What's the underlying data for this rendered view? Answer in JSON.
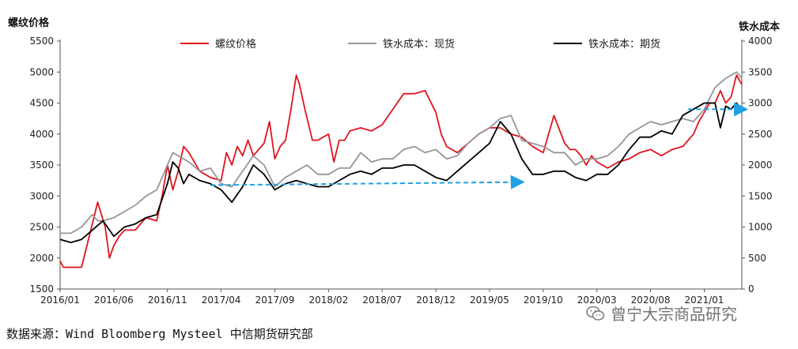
{
  "source": "数据来源：Wind Bloomberg Mysteel 中信期货研究部",
  "watermark": "曾宁大宗商品研究",
  "colors": {
    "rebar": "#e0141e",
    "spot": "#969696",
    "futures": "#000000",
    "arrow": "#1ea0e6"
  },
  "chart_data": {
    "type": "line",
    "left_axis_title": "螺纹价格",
    "right_axis_title": "铁水成本",
    "ylim_left": [
      1500,
      5500
    ],
    "ylim_right": [
      0,
      4000
    ],
    "yticks_left": [
      1500,
      2000,
      2500,
      3000,
      3500,
      4000,
      4500,
      5000,
      5500
    ],
    "yticks_right": [
      0,
      500,
      1000,
      1500,
      2000,
      2500,
      3000,
      3500,
      4000
    ],
    "x_ticks": [
      "2016/01",
      "2016/06",
      "2016/11",
      "2017/04",
      "2017/09",
      "2018/02",
      "2018/07",
      "2018/12",
      "2019/05",
      "2019/10",
      "2020/03",
      "2020/08",
      "2021/01"
    ],
    "x_range_months": [
      0,
      63.5
    ],
    "legend": [
      "螺纹价格",
      "铁水成本：现货",
      "铁水成本：期货"
    ],
    "series": [
      {
        "name": "螺纹价格",
        "axis": "left",
        "x": [
          0,
          0.3,
          1,
          2,
          2.5,
          3,
          3.5,
          4.2,
          4.6,
          5,
          5.5,
          6,
          7,
          8,
          9,
          9.5,
          10,
          10.5,
          11,
          11.5,
          12,
          13,
          14,
          15,
          15.5,
          16,
          16.5,
          17,
          17.5,
          18,
          19,
          19.5,
          20,
          20.5,
          21,
          21.5,
          22,
          22.3,
          22.8,
          23.5,
          24,
          25,
          25.5,
          26,
          26.5,
          27,
          28,
          29,
          30,
          31,
          32,
          33,
          34,
          35,
          35.5,
          36,
          37,
          38,
          39,
          40,
          41,
          42,
          43,
          44,
          45,
          46,
          47,
          47.5,
          48,
          48.5,
          49,
          49.5,
          50,
          51,
          52,
          53,
          54,
          55,
          56,
          57,
          58,
          59,
          59.5,
          60,
          60.5,
          61,
          61.5,
          62,
          62.5,
          63,
          63.5
        ],
        "values": [
          1950,
          1850,
          1850,
          1850,
          2200,
          2550,
          2900,
          2500,
          2000,
          2200,
          2350,
          2450,
          2450,
          2650,
          2600,
          3000,
          3500,
          3100,
          3400,
          3800,
          3700,
          3400,
          3300,
          3250,
          3700,
          3500,
          3800,
          3650,
          3900,
          3650,
          3850,
          4200,
          3600,
          3800,
          3900,
          4400,
          4950,
          4800,
          4400,
          3900,
          3900,
          4000,
          3550,
          3900,
          3900,
          4050,
          4100,
          4050,
          4150,
          4400,
          4650,
          4650,
          4700,
          4350,
          4000,
          3800,
          3700,
          3850,
          4000,
          4100,
          4100,
          4000,
          3950,
          3800,
          3700,
          4300,
          3850,
          3750,
          3750,
          3650,
          3500,
          3650,
          3550,
          3450,
          3550,
          3600,
          3700,
          3750,
          3650,
          3750,
          3800,
          4000,
          4200,
          4350,
          4500,
          4500,
          4700,
          4500,
          4600,
          4950,
          4800
        ]
      },
      {
        "name": "铁水成本：现货",
        "axis": "right",
        "x": [
          0,
          1,
          2,
          3,
          3.5,
          4,
          5,
          6,
          7,
          8,
          9,
          10,
          10.5,
          11,
          11.5,
          12,
          13,
          14,
          15,
          16,
          17,
          18,
          19,
          20,
          21,
          22,
          23,
          24,
          25,
          26,
          27,
          28,
          29,
          30,
          31,
          32,
          33,
          34,
          35,
          36,
          37,
          38,
          39,
          40,
          41,
          42,
          43,
          44,
          45,
          46,
          47,
          48,
          49,
          50,
          51,
          52,
          53,
          54,
          55,
          56,
          57,
          58,
          59,
          60,
          61,
          62,
          63,
          63.5
        ],
        "values": [
          900,
          900,
          1000,
          1200,
          1100,
          1100,
          1150,
          1250,
          1350,
          1500,
          1600,
          2000,
          2200,
          2150,
          2100,
          2050,
          1900,
          1950,
          1700,
          1650,
          1900,
          2150,
          2000,
          1650,
          1800,
          1900,
          2000,
          1850,
          1850,
          1950,
          1950,
          2200,
          2050,
          2100,
          2100,
          2250,
          2300,
          2200,
          2250,
          2100,
          2150,
          2350,
          2500,
          2600,
          2750,
          2800,
          2400,
          2350,
          2300,
          2200,
          2200,
          2000,
          2100,
          2100,
          2150,
          2300,
          2500,
          2600,
          2700,
          2650,
          2700,
          2750,
          2700,
          2900,
          3250,
          3400,
          3500,
          3400
        ]
      },
      {
        "name": "铁水成本：期货",
        "axis": "right",
        "x": [
          0,
          1,
          2,
          3,
          4,
          5,
          6,
          7,
          8,
          9,
          10,
          10.5,
          11,
          11.5,
          12,
          13,
          14,
          15,
          16,
          17,
          18,
          19,
          20,
          21,
          22,
          23,
          24,
          25,
          26,
          27,
          28,
          29,
          30,
          31,
          32,
          33,
          34,
          35,
          36,
          37,
          38,
          39,
          40,
          41,
          42,
          43,
          44,
          45,
          46,
          47,
          48,
          49,
          50,
          51,
          52,
          53,
          54,
          55,
          56,
          57,
          58,
          59,
          60,
          61,
          61.5,
          62,
          62.5,
          63,
          63.5
        ],
        "values": [
          800,
          750,
          800,
          950,
          1100,
          850,
          1000,
          1050,
          1150,
          1200,
          1700,
          2050,
          1950,
          1700,
          1850,
          1750,
          1700,
          1600,
          1400,
          1650,
          2000,
          1850,
          1600,
          1700,
          1750,
          1700,
          1650,
          1650,
          1750,
          1850,
          1900,
          1850,
          1950,
          1950,
          2000,
          2000,
          1900,
          1800,
          1750,
          1900,
          2050,
          2200,
          2350,
          2700,
          2500,
          2100,
          1850,
          1850,
          1900,
          1900,
          1800,
          1750,
          1850,
          1850,
          2000,
          2250,
          2450,
          2450,
          2550,
          2500,
          2800,
          2900,
          3000,
          3000,
          2600,
          2950,
          2900,
          3000,
          2900
        ]
      }
    ],
    "annotations": [
      {
        "type": "arrow",
        "axis": "left",
        "x_from": 14,
        "x_to": 43,
        "y_from": 3175,
        "y_to": 3225
      },
      {
        "type": "arrow",
        "axis": "left",
        "x_from": 58.5,
        "x_to": 63.8,
        "y_from": 4400,
        "y_to": 4400
      }
    ]
  }
}
